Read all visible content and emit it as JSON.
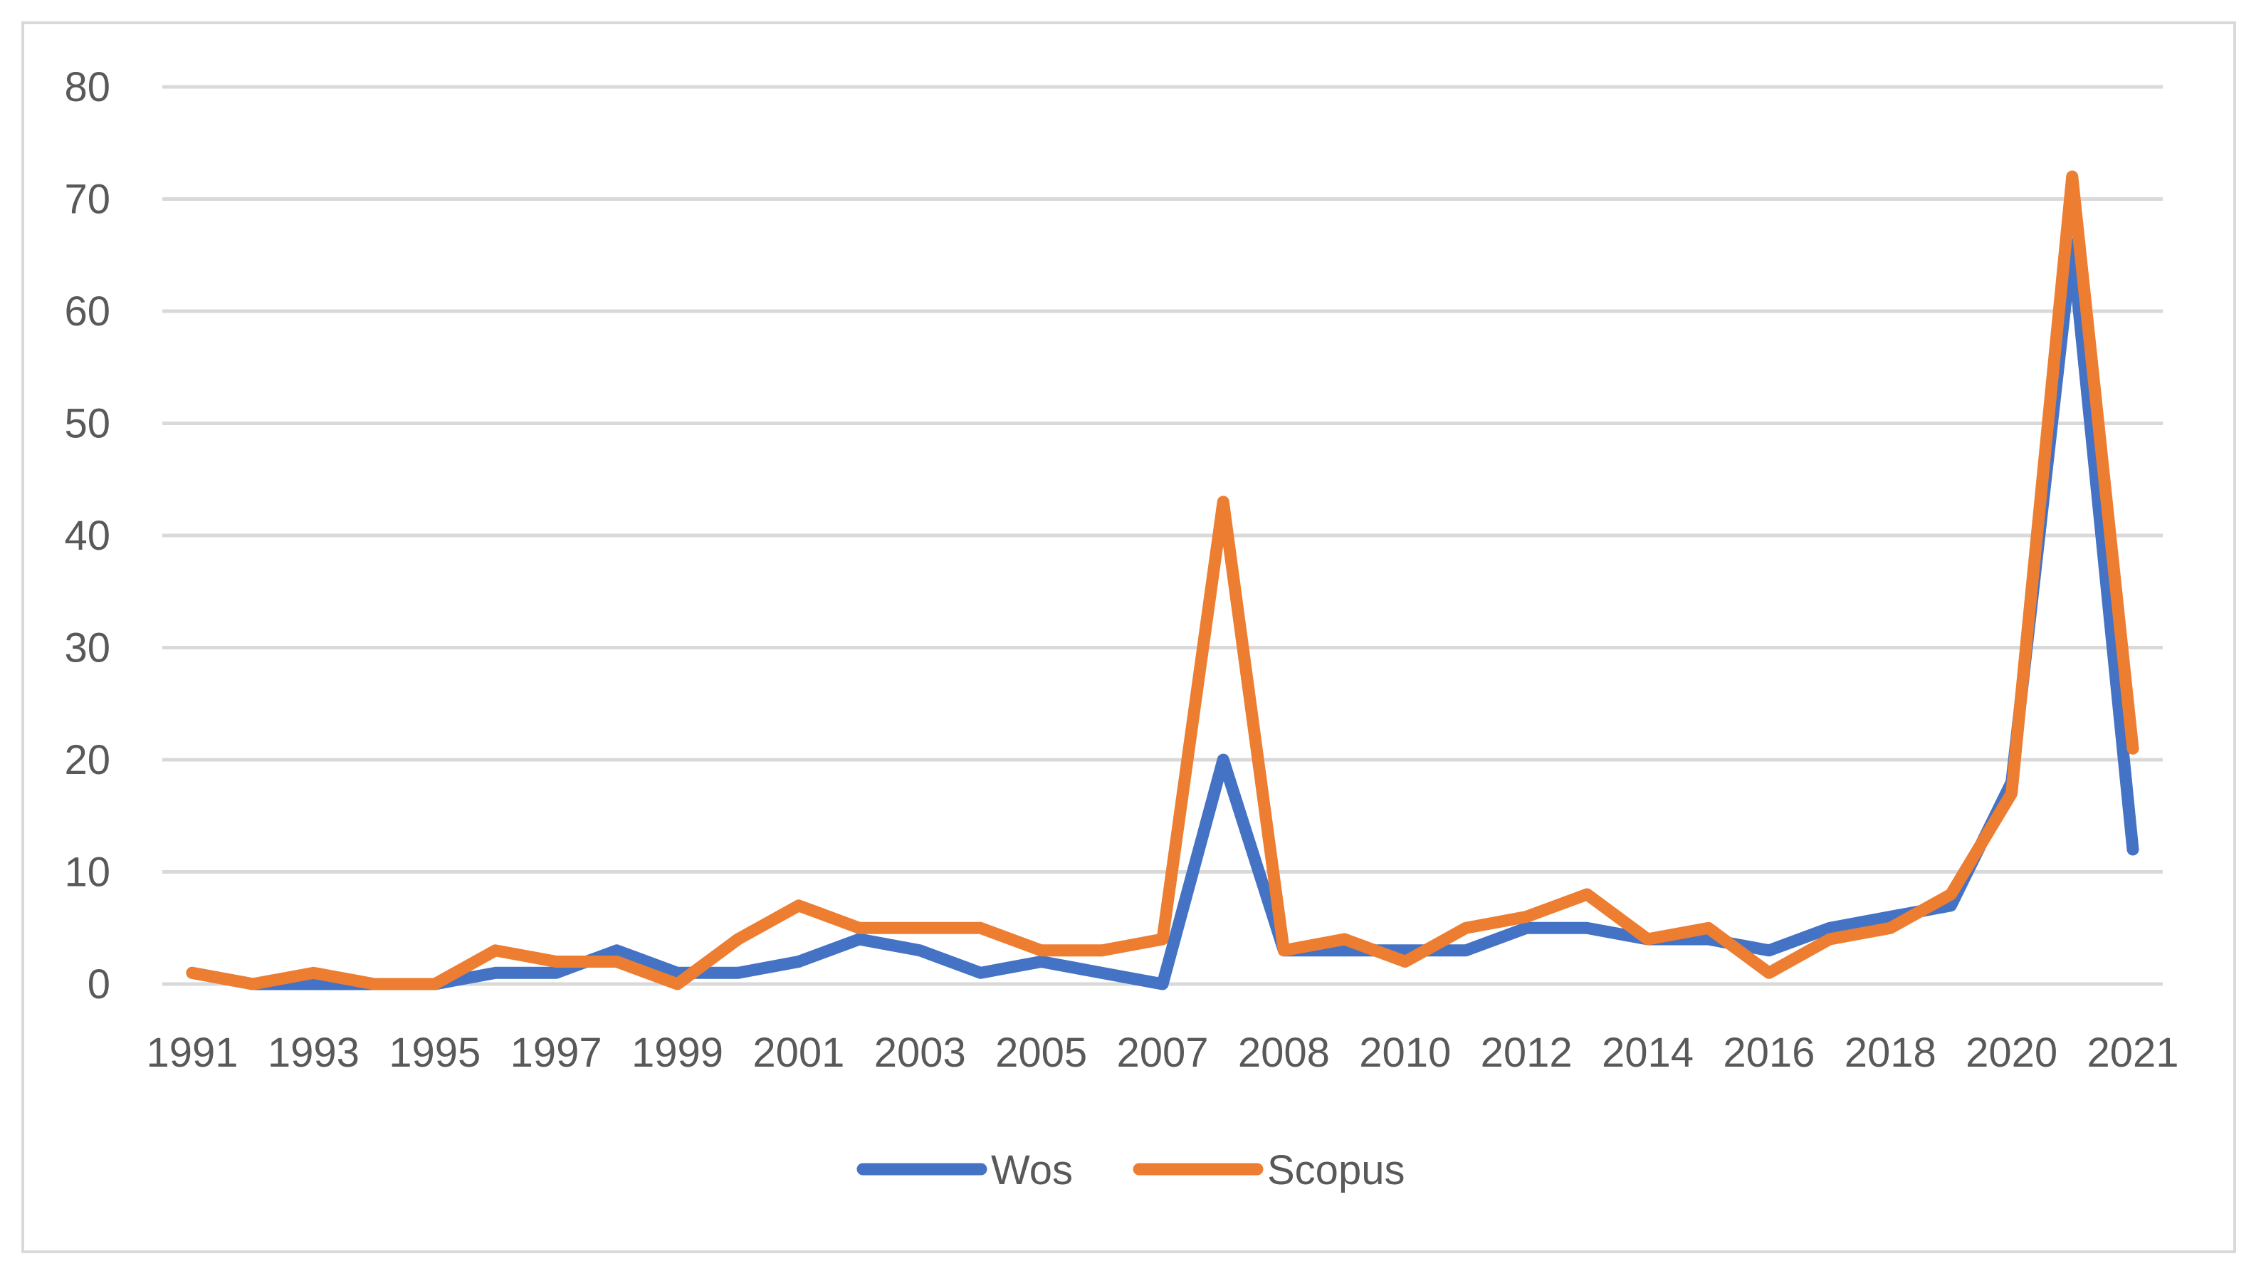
{
  "chart_data": {
    "type": "line",
    "title": "",
    "xlabel": "",
    "ylabel": "",
    "ylim": [
      0,
      80
    ],
    "y_ticks": [
      0,
      10,
      20,
      30,
      40,
      50,
      60,
      70,
      80
    ],
    "grid": "horizontal",
    "legend_position": "bottom",
    "x": [
      "1991",
      "1992",
      "1993",
      "1994",
      "1995",
      "1996",
      "1997",
      "1998",
      "1999",
      "2000",
      "2001",
      "2002",
      "2003",
      "2004",
      "2005",
      "2006",
      "2007",
      "2007",
      "2008",
      "2009",
      "2010",
      "2011",
      "2012",
      "2013",
      "2014",
      "2015",
      "2016",
      "2017",
      "2018",
      "2019",
      "2020",
      "2020",
      "2021"
    ],
    "x_tick_labels": [
      "1991",
      "1993",
      "1995",
      "1997",
      "1999",
      "2001",
      "2003",
      "2005",
      "2007",
      "2008",
      "2010",
      "2012",
      "2014",
      "2016",
      "2018",
      "2020",
      "2021"
    ],
    "series": [
      {
        "name": "Wos",
        "color": "#4472c4",
        "values": [
          1,
          0,
          0,
          0,
          0,
          1,
          1,
          3,
          1,
          1,
          2,
          4,
          3,
          1,
          2,
          1,
          0,
          20,
          3,
          3,
          3,
          3,
          5,
          5,
          4,
          4,
          3,
          5,
          6,
          7,
          18,
          66,
          12
        ]
      },
      {
        "name": "Scopus",
        "color": "#ed7d31",
        "values": [
          1,
          0,
          1,
          0,
          0,
          3,
          2,
          2,
          0,
          4,
          7,
          5,
          5,
          5,
          3,
          3,
          4,
          43,
          3,
          4,
          2,
          5,
          6,
          8,
          4,
          5,
          1,
          4,
          5,
          8,
          17,
          72,
          21
        ]
      }
    ],
    "axis_color": "#d9d9d9",
    "grid_color": "#d9d9d9",
    "text_color": "#595959"
  }
}
